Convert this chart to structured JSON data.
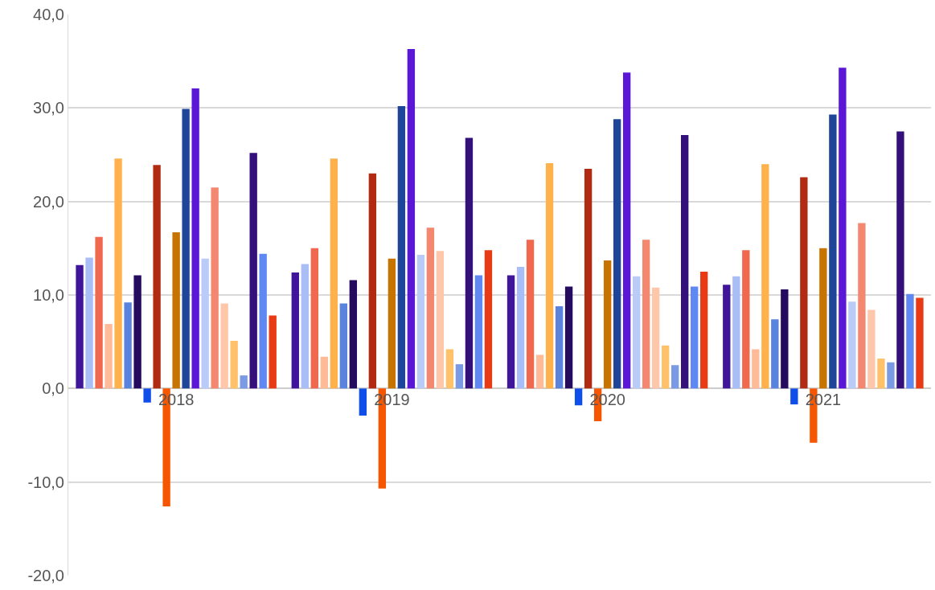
{
  "chart_data": {
    "type": "bar",
    "categories": [
      "2018",
      "2019",
      "2020",
      "2021"
    ],
    "series": [
      {
        "color": "#3f1599",
        "values": [
          13.2,
          12.4,
          12.1,
          11.1
        ]
      },
      {
        "color": "#a9bdf6",
        "values": [
          14.0,
          13.3,
          13.0,
          12.0
        ]
      },
      {
        "color": "#f0684e",
        "values": [
          16.2,
          15.0,
          15.9,
          14.8
        ]
      },
      {
        "color": "#ffbb98",
        "values": [
          6.9,
          3.4,
          3.6,
          4.2
        ]
      },
      {
        "color": "#ffb14b",
        "values": [
          24.6,
          24.6,
          24.1,
          24.0
        ]
      },
      {
        "color": "#5a83de",
        "values": [
          9.2,
          9.1,
          8.8,
          7.4
        ]
      },
      {
        "color": "#250b5e",
        "values": [
          12.1,
          11.6,
          10.9,
          10.6
        ]
      },
      {
        "color": "#0f4ee8",
        "values": [
          -1.5,
          -2.9,
          -1.8,
          -1.7
        ]
      },
      {
        "color": "#b12b12",
        "values": [
          23.9,
          23.0,
          23.5,
          22.6
        ]
      },
      {
        "color": "#f65600",
        "values": [
          -12.6,
          -10.7,
          -3.5,
          -5.8
        ]
      },
      {
        "color": "#c67300",
        "values": [
          16.7,
          13.9,
          13.7,
          15.0
        ]
      },
      {
        "color": "#1f4599",
        "values": [
          29.9,
          30.2,
          28.8,
          29.3
        ]
      },
      {
        "color": "#5b17d6",
        "values": [
          32.1,
          36.3,
          33.8,
          34.3
        ]
      },
      {
        "color": "#bacbf8",
        "values": [
          13.9,
          14.3,
          12.0,
          9.3
        ]
      },
      {
        "color": "#f4876f",
        "values": [
          21.5,
          17.2,
          15.9,
          17.7
        ]
      },
      {
        "color": "#ffc7aa",
        "values": [
          9.1,
          14.7,
          10.8,
          8.4
        ]
      },
      {
        "color": "#ffc26b",
        "values": [
          5.1,
          4.2,
          4.6,
          3.2
        ]
      },
      {
        "color": "#7a9be3",
        "values": [
          1.4,
          2.6,
          2.5,
          2.8
        ]
      },
      {
        "color": "#33107a",
        "values": [
          25.2,
          26.8,
          27.1,
          27.5
        ]
      },
      {
        "color": "#5f88f2",
        "values": [
          14.4,
          12.1,
          10.9,
          10.1
        ]
      },
      {
        "color": "#e83a15",
        "values": [
          7.8,
          14.8,
          12.5,
          9.7
        ]
      }
    ],
    "ylim": [
      -20,
      40
    ],
    "yticks": [
      {
        "value": -20,
        "label": "-20,0"
      },
      {
        "value": -10,
        "label": "-10,0"
      },
      {
        "value": 0,
        "label": "0,0"
      },
      {
        "value": 10,
        "label": "10,0"
      },
      {
        "value": 20,
        "label": "20,0"
      },
      {
        "value": 30,
        "label": "30,0"
      },
      {
        "value": 40,
        "label": "40,0"
      }
    ],
    "grid": "y"
  }
}
